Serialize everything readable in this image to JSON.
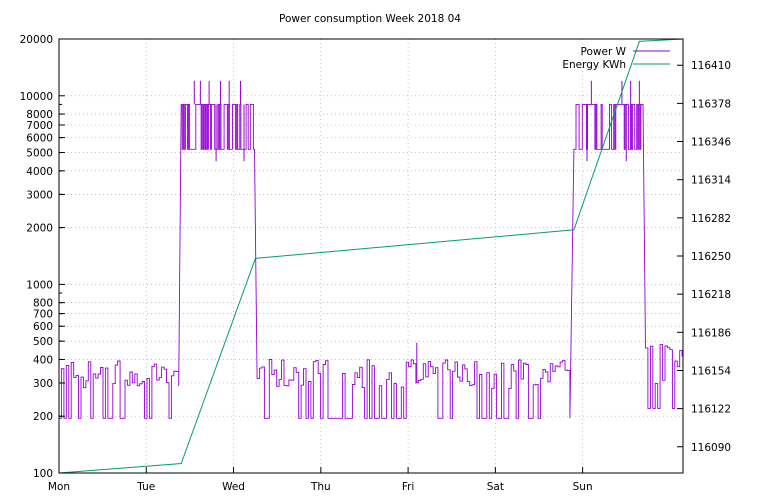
{
  "chart_data": {
    "type": "line",
    "title": "Power consumption Week 2018 04",
    "x_tick_labels": [
      "Mon",
      "Tue",
      "Wed",
      "Thu",
      "Fri",
      "Sat",
      "Sun"
    ],
    "x_range_days": [
      0,
      7.15
    ],
    "y_left": {
      "scale": "log",
      "range": [
        100,
        20000
      ],
      "ticks": [
        100,
        200,
        300,
        400,
        500,
        600,
        700,
        800,
        1000,
        2000,
        3000,
        4000,
        5000,
        6000,
        7000,
        8000,
        10000,
        20000
      ]
    },
    "y_right": {
      "scale": "linear",
      "range": [
        116068,
        116432
      ],
      "ticks": [
        116090,
        116122,
        116154,
        116186,
        116218,
        116250,
        116282,
        116314,
        116346,
        116378,
        116410
      ]
    },
    "grid": true,
    "legend_position": "top-right",
    "series": [
      {
        "name": "Power W",
        "color": "#9400d3",
        "axis": "left",
        "segments": [
          {
            "x0": 0.0,
            "x1": 1.38,
            "low": 195,
            "high": 400,
            "mode": "noise"
          },
          {
            "x0": 1.4,
            "x1": 2.25,
            "low": 5200,
            "high": 9000,
            "mode": "burst"
          },
          {
            "x0": 2.27,
            "x1": 5.88,
            "low": 195,
            "high": 400,
            "mode": "noise"
          },
          {
            "x0": 5.9,
            "x1": 6.7,
            "low": 5200,
            "high": 9000,
            "mode": "burst"
          },
          {
            "x0": 6.72,
            "x1": 7.15,
            "low": 220,
            "high": 500,
            "mode": "noise"
          }
        ],
        "spikes": [
          {
            "x": 1.55,
            "y": 12000
          },
          {
            "x": 1.62,
            "y": 12000
          },
          {
            "x": 1.72,
            "y": 12000
          },
          {
            "x": 1.85,
            "y": 12000
          },
          {
            "x": 1.95,
            "y": 12000
          },
          {
            "x": 2.08,
            "y": 12000
          },
          {
            "x": 4.1,
            "y": 490
          },
          {
            "x": 6.1,
            "y": 12000
          },
          {
            "x": 6.45,
            "y": 12000
          },
          {
            "x": 6.55,
            "y": 12000
          },
          {
            "x": 6.65,
            "y": 12000
          },
          {
            "x": 1.8,
            "y": 4500
          },
          {
            "x": 2.12,
            "y": 4500
          },
          {
            "x": 6.05,
            "y": 4500
          },
          {
            "x": 6.5,
            "y": 4500
          }
        ]
      },
      {
        "name": "Energy KWh",
        "color": "#009e73",
        "axis": "right",
        "points": [
          [
            0.0,
            116068
          ],
          [
            1.4,
            116076
          ],
          [
            2.25,
            116248
          ],
          [
            5.9,
            116272
          ],
          [
            6.65,
            116430
          ],
          [
            7.15,
            116432
          ]
        ]
      }
    ]
  }
}
